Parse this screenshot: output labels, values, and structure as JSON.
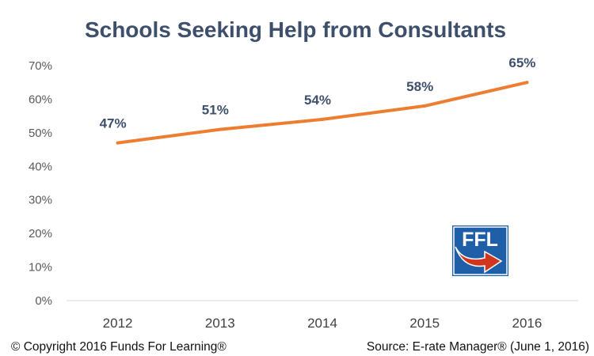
{
  "chart_data": {
    "type": "line",
    "title": "Schools Seeking Help from Consultants",
    "categories": [
      "2012",
      "2013",
      "2014",
      "2015",
      "2016"
    ],
    "series": [
      {
        "values": [
          47,
          51,
          54,
          58,
          65
        ],
        "color": "#ED7D31"
      }
    ],
    "data_labels": [
      "47%",
      "51%",
      "54%",
      "58%",
      "65%"
    ],
    "ylim": [
      0,
      70
    ],
    "y_ticks": [
      "0%",
      "10%",
      "20%",
      "30%",
      "40%",
      "50%",
      "60%",
      "70%"
    ],
    "grid": false,
    "legend": "none"
  },
  "logo": {
    "text": "FFL",
    "colors": {
      "blue": "#1f5fa8",
      "arrow": "#d0361f"
    }
  },
  "footer": {
    "copyright": "© Copyright 2016 Funds For Learning®",
    "source": "Source: E-rate Manager® (June 1, 2016)"
  }
}
